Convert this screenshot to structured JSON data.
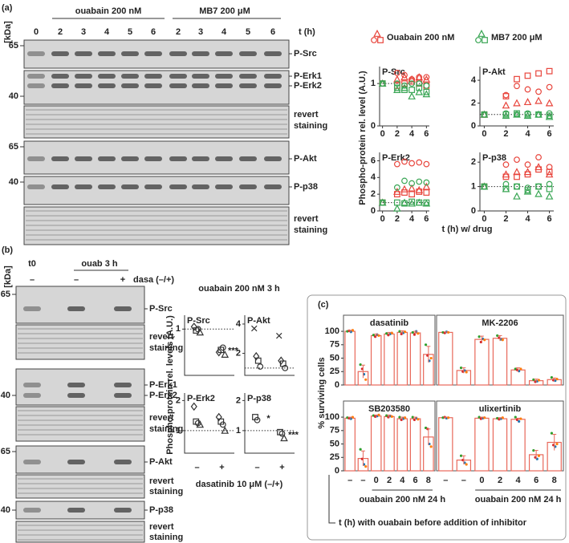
{
  "panel_a": {
    "label": "(a)",
    "kda": "[kDa]",
    "groups": [
      "ouabain 200 nM",
      "MB7 200 μM"
    ],
    "lanes": [
      "0",
      "2",
      "3",
      "4",
      "5",
      "6",
      "2",
      "3",
      "4",
      "5",
      "6"
    ],
    "time": "t (h)",
    "rows": [
      {
        "labels": [
          "P-Src"
        ],
        "kda": 65
      },
      {
        "labels": [
          "P-Erk1",
          "P-Erk2"
        ],
        "kda": 40
      },
      {
        "labels": [
          "revert",
          "staining"
        ]
      },
      {
        "labels": [
          "P-Akt"
        ],
        "kda": 65
      },
      {
        "labels": [
          "P-p38"
        ],
        "kda": 40
      },
      {
        "labels": [
          "revert",
          "staining"
        ]
      }
    ],
    "legend": [
      {
        "name": "Ouabain 200 nM",
        "color": "#e8453c"
      },
      {
        "name": "MB7 200 μM",
        "color": "#3aa655"
      }
    ],
    "ylabel": "Phospho-protein rel. level (A.U.)",
    "xlabel": "t (h) w/ drug"
  },
  "panel_b": {
    "label": "(b)",
    "kda": "[kDa]",
    "t0": "t0",
    "group": "ouab 3 h",
    "lanes": [
      "–",
      "–",
      "+"
    ],
    "treatment": "dasa (–/+)",
    "rows": [
      {
        "labels": [
          "P-Src"
        ],
        "kda": 65
      },
      {
        "labels": [
          "revert",
          "staining"
        ]
      },
      {
        "labels": [
          "P-Erk1",
          "P-Erk2"
        ],
        "kda": 40
      },
      {
        "labels": [
          "revert",
          "staining"
        ]
      },
      {
        "labels": [
          "P-Akt"
        ],
        "kda": 65
      },
      {
        "labels": [
          "revert",
          "staining"
        ]
      },
      {
        "labels": [
          "P-p38"
        ],
        "kda": 40
      },
      {
        "labels": [
          "revert",
          "staining"
        ]
      }
    ],
    "title": "ouabain 200 nM 3 h",
    "ylabel": "Phospho-protein rel. levels (A.U.)",
    "xlabel": "dasatinib 10 μM (–/+)"
  },
  "panel_c": {
    "label": "(c)",
    "ylabel": "% surviving cells",
    "groups": [
      "ouabain 200 nM 24 h",
      "ouabain 200 nM 24 h"
    ],
    "xlabel": "t (h) with ouabain before addition of inhibitor"
  },
  "chart_data": [
    {
      "type": "scatter",
      "title": "P-Src",
      "x": [
        0,
        2,
        3,
        4,
        5,
        6
      ],
      "xlim": [
        -0.4,
        6.4
      ],
      "xticks": [
        0,
        2,
        4,
        6
      ],
      "ylim": [
        0,
        1.4
      ],
      "yticks": [
        0,
        1
      ],
      "refline": 1,
      "series": [
        {
          "color": "#e8453c",
          "marker": "circle",
          "values": [
            1,
            1.25,
            1.2,
            1.1,
            1.15,
            1.15
          ]
        },
        {
          "color": "#e8453c",
          "marker": "triangle",
          "values": [
            1,
            1.1,
            1.15,
            1.1,
            1.15,
            1.1
          ]
        },
        {
          "color": "#e8453c",
          "marker": "square",
          "values": [
            1,
            0.95,
            1.0,
            1.05,
            1.0,
            0.95
          ]
        },
        {
          "color": "#3aa655",
          "marker": "circle",
          "values": [
            1,
            1.0,
            0.95,
            1.0,
            1.0,
            0.95
          ]
        },
        {
          "color": "#3aa655",
          "marker": "triangle",
          "values": [
            1,
            0.85,
            0.9,
            0.7,
            0.8,
            0.75
          ]
        },
        {
          "color": "#3aa655",
          "marker": "square",
          "values": [
            1,
            0.9,
            0.85,
            0.85,
            0.9,
            0.8
          ]
        }
      ]
    },
    {
      "type": "scatter",
      "title": "P-Akt",
      "x": [
        0,
        2,
        3,
        4,
        5,
        6
      ],
      "xlim": [
        -0.4,
        6.4
      ],
      "xticks": [
        0,
        2,
        4,
        6
      ],
      "ylim": [
        0,
        5.2
      ],
      "yticks": [
        0,
        2,
        4
      ],
      "refline": 1,
      "series": [
        {
          "color": "#e8453c",
          "marker": "circle",
          "values": [
            1,
            2.7,
            3.5,
            3.2,
            3.0,
            3.4
          ]
        },
        {
          "color": "#e8453c",
          "marker": "triangle",
          "values": [
            1,
            1.8,
            2.0,
            2.1,
            2.2,
            2.0
          ]
        },
        {
          "color": "#e8453c",
          "marker": "square",
          "values": [
            1,
            2.6,
            4.1,
            4.4,
            4.6,
            4.8
          ]
        },
        {
          "color": "#3aa655",
          "marker": "circle",
          "values": [
            1,
            1.1,
            1.0,
            1.1,
            1.0,
            1.1
          ]
        },
        {
          "color": "#3aa655",
          "marker": "triangle",
          "values": [
            1,
            0.9,
            1.0,
            0.9,
            1.0,
            0.8
          ]
        },
        {
          "color": "#3aa655",
          "marker": "square",
          "values": [
            1,
            1.0,
            1.1,
            1.0,
            1.0,
            0.9
          ]
        }
      ]
    },
    {
      "type": "scatter",
      "title": "P-Erk2",
      "x": [
        0,
        2,
        3,
        4,
        5,
        6
      ],
      "xlim": [
        -0.4,
        6.4
      ],
      "xticks": [
        0,
        2,
        4,
        6
      ],
      "ylim": [
        0,
        7
      ],
      "yticks": [
        0,
        2,
        4,
        6
      ],
      "refline": 1,
      "series": [
        {
          "color": "#e8453c",
          "marker": "circle",
          "values": [
            1,
            5.6,
            5.9,
            5.7,
            5.8,
            5.6
          ]
        },
        {
          "color": "#e8453c",
          "marker": "triangle",
          "values": [
            1,
            2.3,
            2.6,
            2.7,
            2.5,
            2.9
          ]
        },
        {
          "color": "#e8453c",
          "marker": "square",
          "values": [
            1,
            2.0,
            2.2,
            2.0,
            2.3,
            2.2
          ]
        },
        {
          "color": "#3aa655",
          "marker": "circle",
          "values": [
            1,
            2.8,
            3.6,
            3.3,
            3.5,
            3.4
          ]
        },
        {
          "color": "#3aa655",
          "marker": "triangle",
          "values": [
            1,
            0.3,
            1.0,
            0.9,
            1.0,
            0.9
          ]
        },
        {
          "color": "#3aa655",
          "marker": "square",
          "values": [
            1,
            1.0,
            0.9,
            1.1,
            1.0,
            1.0
          ]
        }
      ]
    },
    {
      "type": "scatter",
      "title": "P-p38",
      "x": [
        0,
        2,
        3,
        4,
        5,
        6
      ],
      "xlim": [
        -0.4,
        6.4
      ],
      "xticks": [
        0,
        2,
        4,
        6
      ],
      "ylim": [
        0,
        2.4
      ],
      "yticks": [
        0,
        1,
        2
      ],
      "refline": 1,
      "series": [
        {
          "color": "#e8453c",
          "marker": "circle",
          "values": [
            1,
            1.9,
            2.1,
            1.9,
            2.2,
            1.8
          ]
        },
        {
          "color": "#e8453c",
          "marker": "triangle",
          "values": [
            1,
            1.5,
            1.6,
            1.6,
            1.8,
            1.5
          ]
        },
        {
          "color": "#e8453c",
          "marker": "square",
          "values": [
            1,
            1.4,
            1.4,
            1.5,
            1.7,
            1.6
          ]
        },
        {
          "color": "#3aa655",
          "marker": "circle",
          "values": [
            1,
            1.1,
            1.0,
            0.95,
            1.0,
            1.1
          ]
        },
        {
          "color": "#3aa655",
          "marker": "triangle",
          "values": [
            1,
            0.9,
            0.6,
            0.8,
            0.7,
            0.6
          ]
        },
        {
          "color": "#3aa655",
          "marker": "square",
          "values": [
            1,
            0.9,
            1.0,
            0.85,
            1.0,
            0.9
          ]
        }
      ]
    },
    {
      "type": "scatter",
      "title": "P-Src",
      "categories": [
        null,
        null
      ],
      "ylim": [
        0,
        1.3
      ],
      "yticks": [
        1
      ],
      "refline": 1,
      "annotations": [
        null,
        "***"
      ],
      "series": [
        {
          "color": "#333333",
          "marker": "diamond",
          "values": [
            1.05,
            0.5
          ]
        },
        {
          "color": "#333333",
          "marker": "square",
          "values": [
            0.97,
            0.55
          ]
        },
        {
          "color": "#333333",
          "marker": "circle",
          "values": [
            1.0,
            0.6
          ]
        },
        {
          "color": "#333333",
          "marker": "triangle",
          "values": [
            0.93,
            0.45
          ]
        }
      ]
    },
    {
      "type": "scatter",
      "title": "P-Akt",
      "categories": [
        null,
        null
      ],
      "ylim": [
        0.5,
        4.6
      ],
      "yticks": [
        2,
        4
      ],
      "refline": 1,
      "series": [
        {
          "color": "#333333",
          "marker": "cross",
          "values": [
            3.7,
            3.2
          ]
        },
        {
          "color": "#333333",
          "marker": "diamond",
          "values": [
            1.8,
            1.5
          ]
        },
        {
          "color": "#333333",
          "marker": "square",
          "values": [
            1.5,
            1.3
          ]
        },
        {
          "color": "#333333",
          "marker": "circle",
          "values": [
            1.1,
            1.0
          ]
        }
      ]
    },
    {
      "type": "scatter",
      "title": "P-Erk2",
      "categories": [
        "–",
        "+"
      ],
      "ylim": [
        0.25,
        2.25
      ],
      "yticks": [
        1,
        2
      ],
      "refline": 1,
      "series": [
        {
          "color": "#333333",
          "marker": "diamond",
          "values": [
            1.8,
            1.45
          ]
        },
        {
          "color": "#333333",
          "marker": "square",
          "values": [
            1.3,
            1.3
          ]
        },
        {
          "color": "#333333",
          "marker": "circle",
          "values": [
            1.25,
            1.2
          ]
        },
        {
          "color": "#333333",
          "marker": "triangle",
          "values": [
            1.2,
            1.0
          ]
        }
      ]
    },
    {
      "type": "scatter",
      "title": "P-p38",
      "categories": [
        "–",
        "+"
      ],
      "ylim": [
        0.25,
        2.25
      ],
      "yticks": [
        1,
        2
      ],
      "refline": 1,
      "annotations": [
        "*",
        "***"
      ],
      "series": [
        {
          "color": "#333333",
          "marker": "square",
          "values": [
            1.45,
            0.95
          ]
        },
        {
          "color": "#333333",
          "marker": "circle",
          "values": [
            1.35,
            0.9
          ]
        },
        {
          "color": "#333333",
          "marker": "triangle",
          "values": [
            null,
            0.75
          ]
        }
      ]
    },
    {
      "type": "bar",
      "title": "dasatinib",
      "categories": [
        null,
        null,
        null,
        null,
        null,
        null,
        null
      ],
      "color": "#e8685a",
      "ylim": [
        0,
        130
      ],
      "yticks": [
        0,
        25,
        50,
        75,
        100
      ],
      "values": [
        100,
        25,
        92,
        95,
        98,
        97,
        57
      ],
      "errors": [
        2,
        12,
        3,
        3,
        3,
        3,
        15
      ],
      "point_colors": [
        "#2ca02c",
        "#d62728",
        "#1f77b4",
        "#ff7f0e"
      ],
      "points": [
        [
          100,
          101,
          99,
          102
        ],
        [
          38,
          30,
          20,
          10
        ],
        [
          93,
          90,
          94,
          92
        ],
        [
          96,
          93,
          95,
          97
        ],
        [
          100,
          95,
          97,
          99
        ],
        [
          98,
          94,
          100,
          96
        ],
        [
          75,
          55,
          45,
          50
        ]
      ]
    },
    {
      "type": "bar",
      "title": "MK-2206",
      "categories": [
        null,
        null,
        null,
        null,
        null,
        null,
        null
      ],
      "color": "#e8685a",
      "ylim": [
        0,
        130
      ],
      "values": [
        98,
        27,
        85,
        87,
        28,
        8,
        10
      ],
      "errors": [
        1,
        5,
        6,
        5,
        4,
        3,
        3
      ],
      "point_colors": [
        "#2ca02c",
        "#d62728",
        "#1f77b4",
        "#ff7f0e"
      ],
      "points": [
        [
          98,
          97,
          99,
          98
        ],
        [
          32,
          25,
          27,
          24
        ],
        [
          90,
          80,
          86,
          84
        ],
        [
          92,
          88,
          85,
          84
        ],
        [
          30,
          28,
          26,
          30
        ],
        [
          10,
          6,
          7,
          9
        ],
        [
          14,
          9,
          8,
          11
        ]
      ]
    },
    {
      "type": "bar",
      "title": "SB203580",
      "categories": [
        "–",
        "–",
        "0",
        "2",
        "4",
        "6",
        "8"
      ],
      "color": "#e8685a",
      "ylim": [
        0,
        130
      ],
      "yticks": [
        0,
        25,
        50,
        75,
        100
      ],
      "values": [
        98,
        23,
        102,
        101,
        97,
        97,
        63
      ],
      "errors": [
        2,
        14,
        2,
        3,
        3,
        3,
        15
      ],
      "point_colors": [
        "#2ca02c",
        "#d62728",
        "#1f77b4",
        "#ff7f0e"
      ],
      "points": [
        [
          99,
          98,
          97,
          100
        ],
        [
          40,
          22,
          12,
          8
        ],
        [
          103,
          101,
          102,
          104
        ],
        [
          103,
          100,
          102,
          101
        ],
        [
          100,
          95,
          97,
          99
        ],
        [
          100,
          95,
          98,
          96
        ],
        [
          80,
          78,
          50,
          45
        ]
      ]
    },
    {
      "type": "bar",
      "title": "ulixertinib",
      "categories": [
        "–",
        "–",
        "0",
        "2",
        "4",
        "6",
        "8"
      ],
      "color": "#e8685a",
      "ylim": [
        0,
        130
      ],
      "values": [
        99,
        20,
        98,
        97,
        96,
        30,
        53
      ],
      "errors": [
        1,
        8,
        2,
        2,
        2,
        8,
        15
      ],
      "point_colors": [
        "#2ca02c",
        "#d62728",
        "#1f77b4",
        "#ff7f0e"
      ],
      "points": [
        [
          99,
          100,
          98,
          99
        ],
        [
          28,
          20,
          15,
          12
        ],
        [
          100,
          97,
          98,
          99
        ],
        [
          98,
          96,
          97,
          99
        ],
        [
          100,
          95,
          92,
          97
        ],
        [
          38,
          25,
          22,
          28
        ],
        [
          70,
          48,
          45,
          50
        ]
      ]
    }
  ]
}
